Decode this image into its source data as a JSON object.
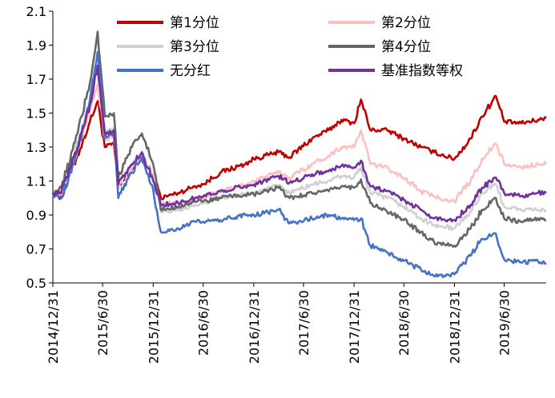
{
  "chart_data": {
    "type": "line",
    "title": "",
    "xlabel": "",
    "ylabel": "",
    "ylim": [
      0.5,
      2.1
    ],
    "yticks": [
      0.5,
      0.7,
      0.9,
      1.1,
      1.3,
      1.5,
      1.7,
      1.9,
      2.1
    ],
    "x_range": [
      "2014-12-31",
      "2019-11-30"
    ],
    "x_ticks": [
      "2014/12/31",
      "2015/6/30",
      "2015/12/31",
      "2016/6/30",
      "2016/12/31",
      "2017/6/30",
      "2017/12/31",
      "2018/6/30",
      "2018/12/31",
      "2019/6/30"
    ],
    "grid": false,
    "legend": {
      "placement": "top",
      "columns": 2
    },
    "x": [
      "2014-12-31",
      "2015-01-31",
      "2015-03-31",
      "2015-05-15",
      "2015-06-12",
      "2015-07-08",
      "2015-08-10",
      "2015-08-26",
      "2015-10-15",
      "2015-11-20",
      "2015-12-31",
      "2016-01-28",
      "2016-03-31",
      "2016-05-31",
      "2016-06-30",
      "2016-08-31",
      "2016-11-30",
      "2016-12-31",
      "2017-03-31",
      "2017-05-10",
      "2017-07-31",
      "2017-09-30",
      "2017-11-15",
      "2017-12-31",
      "2018-01-25",
      "2018-02-28",
      "2018-04-30",
      "2018-06-30",
      "2018-08-31",
      "2018-10-18",
      "2018-12-31",
      "2019-02-28",
      "2019-04-10",
      "2019-05-31",
      "2019-06-30",
      "2019-08-31",
      "2019-10-31",
      "2019-11-30"
    ],
    "series": [
      {
        "name": "第1分位",
        "color": "#c00000",
        "values": [
          1.03,
          1.01,
          1.25,
          1.45,
          1.57,
          1.3,
          1.32,
          1.06,
          1.17,
          1.23,
          1.14,
          1.0,
          1.03,
          1.07,
          1.08,
          1.15,
          1.2,
          1.23,
          1.27,
          1.24,
          1.35,
          1.4,
          1.46,
          1.44,
          1.58,
          1.4,
          1.4,
          1.35,
          1.3,
          1.27,
          1.23,
          1.35,
          1.48,
          1.6,
          1.45,
          1.44,
          1.46,
          1.47
        ]
      },
      {
        "name": "第2分位",
        "color": "#ffbfbf",
        "values": [
          1.03,
          1.02,
          1.28,
          1.52,
          1.67,
          1.35,
          1.35,
          1.06,
          1.18,
          1.24,
          1.14,
          0.97,
          0.97,
          0.98,
          1.0,
          1.04,
          1.08,
          1.1,
          1.15,
          1.12,
          1.2,
          1.25,
          1.3,
          1.3,
          1.4,
          1.2,
          1.18,
          1.12,
          1.04,
          1.01,
          0.98,
          1.1,
          1.23,
          1.32,
          1.2,
          1.18,
          1.2,
          1.2
        ]
      },
      {
        "name": "第3分位",
        "color": "#d0d0d0",
        "values": [
          1.03,
          1.04,
          1.32,
          1.58,
          1.78,
          1.4,
          1.4,
          1.08,
          1.2,
          1.26,
          1.13,
          0.92,
          0.93,
          0.96,
          0.97,
          1.0,
          1.02,
          1.03,
          1.07,
          1.03,
          1.08,
          1.1,
          1.13,
          1.12,
          1.18,
          1.03,
          1.0,
          0.95,
          0.88,
          0.84,
          0.82,
          0.92,
          1.03,
          1.08,
          0.95,
          0.93,
          0.93,
          0.93
        ]
      },
      {
        "name": "第4分位",
        "color": "#666666",
        "values": [
          1.03,
          1.06,
          1.38,
          1.68,
          1.98,
          1.48,
          1.5,
          1.12,
          1.3,
          1.38,
          1.2,
          0.93,
          0.95,
          0.98,
          0.98,
          1.0,
          1.02,
          1.02,
          1.06,
          1.0,
          1.03,
          1.04,
          1.07,
          1.06,
          1.11,
          0.97,
          0.92,
          0.87,
          0.8,
          0.74,
          0.72,
          0.82,
          0.93,
          1.0,
          0.88,
          0.86,
          0.88,
          0.87
        ]
      },
      {
        "name": "无分红",
        "color": "#4472c4",
        "values": [
          1.02,
          1.0,
          1.28,
          1.58,
          1.86,
          1.35,
          1.38,
          1.0,
          1.15,
          1.24,
          1.05,
          0.8,
          0.82,
          0.86,
          0.86,
          0.87,
          0.9,
          0.9,
          0.93,
          0.85,
          0.88,
          0.9,
          0.88,
          0.87,
          0.88,
          0.72,
          0.68,
          0.63,
          0.58,
          0.54,
          0.55,
          0.66,
          0.76,
          0.79,
          0.64,
          0.62,
          0.63,
          0.61
        ]
      },
      {
        "name": "基准指数等权",
        "color": "#7030a0",
        "values": [
          1.03,
          1.03,
          1.3,
          1.55,
          1.78,
          1.38,
          1.4,
          1.08,
          1.2,
          1.27,
          1.1,
          0.96,
          0.97,
          1.0,
          1.01,
          1.04,
          1.07,
          1.08,
          1.13,
          1.09,
          1.14,
          1.16,
          1.19,
          1.18,
          1.22,
          1.07,
          1.04,
          0.99,
          0.93,
          0.88,
          0.87,
          0.96,
          1.06,
          1.12,
          1.03,
          1.01,
          1.03,
          1.03
        ]
      }
    ]
  }
}
